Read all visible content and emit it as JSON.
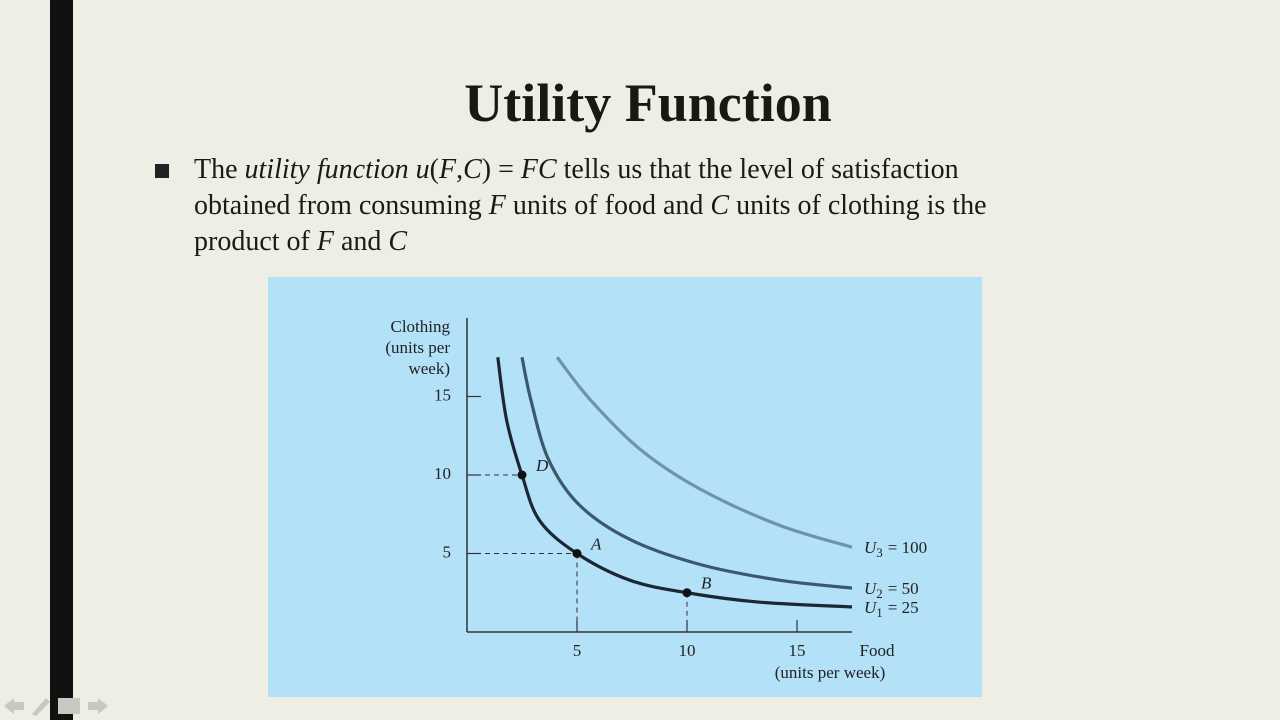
{
  "slide": {
    "title": "Utility Function",
    "bullet": [
      [
        {
          "text": "The ",
          "italic": false
        },
        {
          "text": "utility function u",
          "italic": true
        },
        {
          "text": "(",
          "italic": false
        },
        {
          "text": "F",
          "italic": true
        },
        {
          "text": ",",
          "italic": false
        },
        {
          "text": "C",
          "italic": true
        },
        {
          "text": ") = ",
          "italic": false
        },
        {
          "text": "FC",
          "italic": true
        },
        {
          "text": " tells us that the level of satisfaction",
          "italic": false
        }
      ],
      [
        {
          "text": "obtained from consuming ",
          "italic": false
        },
        {
          "text": "F",
          "italic": true
        },
        {
          "text": " units of food and ",
          "italic": false
        },
        {
          "text": "C",
          "italic": true
        },
        {
          "text": " units of clothing is the",
          "italic": false
        }
      ],
      [
        {
          "text": "product of ",
          "italic": false
        },
        {
          "text": "F",
          "italic": true
        },
        {
          "text": " and ",
          "italic": false
        },
        {
          "text": "C",
          "italic": true
        }
      ]
    ]
  },
  "chart_data": {
    "type": "line",
    "y_label": [
      "Clothing",
      "(units per",
      "week)"
    ],
    "x_label": [
      "Food",
      "(units per week)"
    ],
    "xlim": [
      0,
      17.5
    ],
    "ylim": [
      0,
      20
    ],
    "xticks": [
      5,
      10,
      15
    ],
    "yticks": [
      5,
      10,
      15
    ],
    "background": "#b3e1f8",
    "series": [
      {
        "name": "U",
        "subscript": "1",
        "label": "= 25",
        "color": "#1c2733",
        "x": [
          1.4,
          1.8,
          2.5,
          3.3,
          5.0,
          7.4,
          10.0,
          13.3,
          17.5
        ],
        "values": [
          17.5,
          13.5,
          10.0,
          7.1,
          5.0,
          3.3,
          2.5,
          1.9,
          1.6
        ]
      },
      {
        "name": "U",
        "subscript": "2",
        "label": "= 50",
        "color": "#3b586e",
        "x": [
          2.5,
          2.9,
          3.7,
          5.1,
          7.4,
          10.6,
          14.2,
          17.5
        ],
        "values": [
          17.5,
          14.8,
          11.0,
          8.1,
          5.9,
          4.3,
          3.3,
          2.8
        ]
      },
      {
        "name": "U",
        "subscript": "3",
        "label": "= 100",
        "color": "#6f93ab",
        "x": [
          4.1,
          5.6,
          7.9,
          10.6,
          14.2,
          17.5
        ],
        "values": [
          17.5,
          14.8,
          11.6,
          9.1,
          6.8,
          5.4
        ]
      }
    ],
    "points": [
      {
        "label": "D",
        "x": 2.5,
        "y": 10,
        "guides": [
          "h"
        ]
      },
      {
        "label": "A",
        "x": 5,
        "y": 5,
        "guides": [
          "h",
          "v"
        ]
      },
      {
        "label": "B",
        "x": 10,
        "y": 2.5,
        "guides": [
          "v"
        ]
      }
    ]
  }
}
